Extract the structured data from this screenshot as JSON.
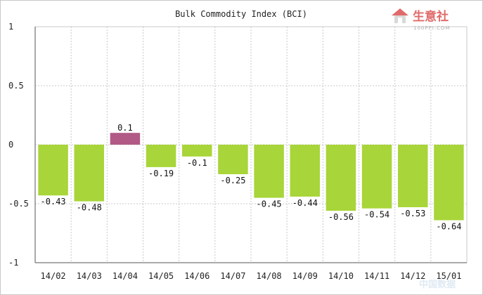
{
  "chart_data": {
    "type": "bar",
    "title": "Bulk Commodity Index (BCI)",
    "categories": [
      "14/02",
      "14/03",
      "14/04",
      "14/05",
      "14/06",
      "14/07",
      "14/08",
      "14/09",
      "14/10",
      "14/11",
      "14/12",
      "15/01"
    ],
    "values": [
      -0.43,
      -0.48,
      0.1,
      -0.19,
      -0.1,
      -0.25,
      -0.45,
      -0.44,
      -0.56,
      -0.54,
      -0.53,
      -0.64
    ],
    "value_labels": [
      "-0.43",
      "-0.48",
      "0.1",
      "-0.19",
      "-0.1",
      "-0.25",
      "-0.45",
      "-0.44",
      "-0.56",
      "-0.54",
      "-0.53",
      "-0.64"
    ],
    "ylim": [
      -1,
      1
    ],
    "yticks": [
      1,
      0.5,
      0,
      -0.5,
      -1
    ],
    "ytick_labels": [
      "1",
      "0.5",
      "0",
      "-0.5",
      "-1"
    ],
    "grid": true,
    "colors": {
      "negative": "#a8d539",
      "positive": "#b15a85",
      "grid": "#c8c8c8",
      "axis": "#555555"
    }
  },
  "branding": {
    "logo_text": "生意社",
    "logo_url_text": "100PPI.COM",
    "watermark_text": "中国数据"
  }
}
